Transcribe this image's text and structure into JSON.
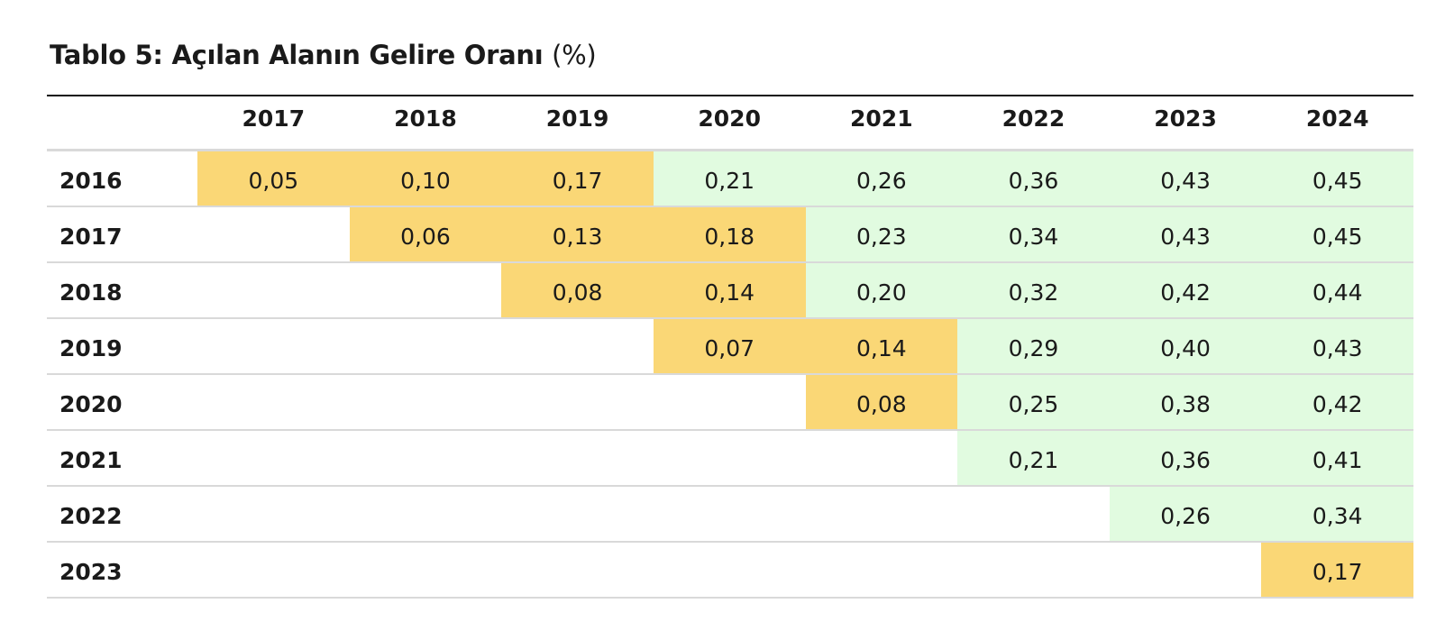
{
  "title": {
    "main": "Tablo 5: Açılan Alanın Gelire Oranı",
    "unit": "(%)"
  },
  "colors": {
    "yellow": "#fad776",
    "green": "#e1fbe0"
  },
  "columns": [
    "2017",
    "2018",
    "2019",
    "2020",
    "2021",
    "2022",
    "2023",
    "2024"
  ],
  "rows": [
    {
      "label": "2016",
      "cells": [
        {
          "v": "0,05",
          "c": "y"
        },
        {
          "v": "0,10",
          "c": "y"
        },
        {
          "v": "0,17",
          "c": "y"
        },
        {
          "v": "0,21",
          "c": "g"
        },
        {
          "v": "0,26",
          "c": "g"
        },
        {
          "v": "0,36",
          "c": "g"
        },
        {
          "v": "0,43",
          "c": "g"
        },
        {
          "v": "0,45",
          "c": "g"
        }
      ]
    },
    {
      "label": "2017",
      "cells": [
        {
          "v": "",
          "c": ""
        },
        {
          "v": "0,06",
          "c": "y"
        },
        {
          "v": "0,13",
          "c": "y"
        },
        {
          "v": "0,18",
          "c": "y"
        },
        {
          "v": "0,23",
          "c": "g"
        },
        {
          "v": "0,34",
          "c": "g"
        },
        {
          "v": "0,43",
          "c": "g"
        },
        {
          "v": "0,45",
          "c": "g"
        }
      ]
    },
    {
      "label": "2018",
      "cells": [
        {
          "v": "",
          "c": ""
        },
        {
          "v": "",
          "c": ""
        },
        {
          "v": "0,08",
          "c": "y"
        },
        {
          "v": "0,14",
          "c": "y"
        },
        {
          "v": "0,20",
          "c": "g"
        },
        {
          "v": "0,32",
          "c": "g"
        },
        {
          "v": "0,42",
          "c": "g"
        },
        {
          "v": "0,44",
          "c": "g"
        }
      ]
    },
    {
      "label": "2019",
      "cells": [
        {
          "v": "",
          "c": ""
        },
        {
          "v": "",
          "c": ""
        },
        {
          "v": "",
          "c": ""
        },
        {
          "v": "0,07",
          "c": "y"
        },
        {
          "v": "0,14",
          "c": "y"
        },
        {
          "v": "0,29",
          "c": "g"
        },
        {
          "v": "0,40",
          "c": "g"
        },
        {
          "v": "0,43",
          "c": "g"
        }
      ]
    },
    {
      "label": "2020",
      "cells": [
        {
          "v": "",
          "c": ""
        },
        {
          "v": "",
          "c": ""
        },
        {
          "v": "",
          "c": ""
        },
        {
          "v": "",
          "c": ""
        },
        {
          "v": "0,08",
          "c": "y"
        },
        {
          "v": "0,25",
          "c": "g"
        },
        {
          "v": "0,38",
          "c": "g"
        },
        {
          "v": "0,42",
          "c": "g"
        }
      ]
    },
    {
      "label": "2021",
      "cells": [
        {
          "v": "",
          "c": ""
        },
        {
          "v": "",
          "c": ""
        },
        {
          "v": "",
          "c": ""
        },
        {
          "v": "",
          "c": ""
        },
        {
          "v": "",
          "c": ""
        },
        {
          "v": "0,21",
          "c": "g"
        },
        {
          "v": "0,36",
          "c": "g"
        },
        {
          "v": "0,41",
          "c": "g"
        }
      ]
    },
    {
      "label": "2022",
      "cells": [
        {
          "v": "",
          "c": ""
        },
        {
          "v": "",
          "c": ""
        },
        {
          "v": "",
          "c": ""
        },
        {
          "v": "",
          "c": ""
        },
        {
          "v": "",
          "c": ""
        },
        {
          "v": "",
          "c": ""
        },
        {
          "v": "0,26",
          "c": "g"
        },
        {
          "v": "0,34",
          "c": "g"
        }
      ]
    },
    {
      "label": "2023",
      "cells": [
        {
          "v": "",
          "c": ""
        },
        {
          "v": "",
          "c": ""
        },
        {
          "v": "",
          "c": ""
        },
        {
          "v": "",
          "c": ""
        },
        {
          "v": "",
          "c": ""
        },
        {
          "v": "",
          "c": ""
        },
        {
          "v": "",
          "c": ""
        },
        {
          "v": "0,17",
          "c": "y"
        }
      ]
    }
  ]
}
